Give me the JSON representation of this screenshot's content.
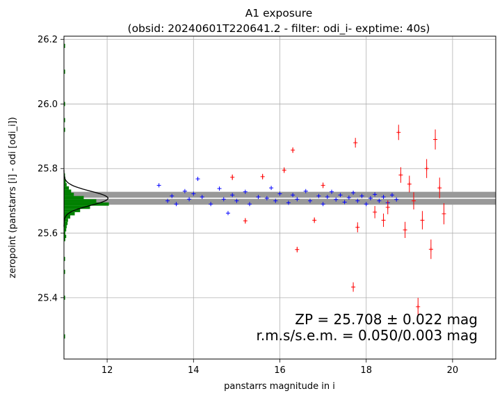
{
  "chart_data": {
    "type": "scatter",
    "title": "A1 exposure",
    "subtitle": "(obsid: 20240601T220641.2 - filter: odi_i- exptime: 40s)",
    "xlabel": "panstarrs magnitude in i",
    "ylabel": "zeropoint (panstarrs [i] - odi [odi_i])",
    "xlim": [
      11.0,
      21.0
    ],
    "ylim": [
      25.21,
      26.21
    ],
    "xticks": [
      12,
      14,
      16,
      18,
      20
    ],
    "yticks": [
      25.4,
      25.6,
      25.8,
      26.0,
      26.2
    ],
    "grid": true,
    "zeropoint": {
      "value": 25.708,
      "band_low": 25.688,
      "band_high": 25.728
    },
    "annotation": {
      "line1": "ZP = 25.708 ± 0.022 mag",
      "line2": "r.m.s/s.e.m. = 0.050/0.003 mag"
    },
    "colors": {
      "used": "#0000ff",
      "rejected": "#ff0000",
      "histogram": "#008000",
      "band": "#999999",
      "zp_line": "#ffffff",
      "fit": "#000000"
    },
    "histogram": {
      "bin_width": 0.01,
      "bins": [
        {
          "y": 25.58,
          "count": 0.03
        },
        {
          "y": 25.59,
          "count": 0.05
        },
        {
          "y": 25.6,
          "count": 0.03
        },
        {
          "y": 25.61,
          "count": 0.05
        },
        {
          "y": 25.62,
          "count": 0.06
        },
        {
          "y": 25.63,
          "count": 0.08
        },
        {
          "y": 25.64,
          "count": 0.09
        },
        {
          "y": 25.65,
          "count": 0.14
        },
        {
          "y": 25.66,
          "count": 0.24
        },
        {
          "y": 25.67,
          "count": 0.36
        },
        {
          "y": 25.68,
          "count": 0.58
        },
        {
          "y": 25.69,
          "count": 1.0
        },
        {
          "y": 25.7,
          "count": 0.72
        },
        {
          "y": 25.71,
          "count": 0.44
        },
        {
          "y": 25.72,
          "count": 0.22
        },
        {
          "y": 25.73,
          "count": 0.16
        },
        {
          "y": 25.74,
          "count": 0.11
        },
        {
          "y": 25.75,
          "count": 0.06
        },
        {
          "y": 25.76,
          "count": 0.04
        },
        {
          "y": 25.77,
          "count": 0.03
        },
        {
          "y": 25.78,
          "count": 0.02
        }
      ]
    },
    "fit_curve": {
      "mu": 25.708,
      "sigma": 0.022,
      "peak": 0.98
    },
    "series": [
      {
        "name": "",
        "style": "used",
        "points": [
          [
            13.2,
            25.748
          ],
          [
            13.4,
            25.7
          ],
          [
            13.5,
            25.715
          ],
          [
            13.6,
            25.69
          ],
          [
            13.8,
            25.73
          ],
          [
            13.9,
            25.705
          ],
          [
            14.0,
            25.722
          ],
          [
            14.1,
            25.768
          ],
          [
            14.2,
            25.712
          ],
          [
            14.4,
            25.69
          ],
          [
            14.6,
            25.738
          ],
          [
            14.7,
            25.705
          ],
          [
            14.8,
            25.662
          ],
          [
            14.9,
            25.718
          ],
          [
            15.0,
            25.7
          ],
          [
            15.2,
            25.728
          ],
          [
            15.3,
            25.69
          ],
          [
            15.5,
            25.712
          ],
          [
            15.7,
            25.708
          ],
          [
            15.8,
            25.74
          ],
          [
            15.9,
            25.7
          ],
          [
            16.0,
            25.722
          ],
          [
            16.2,
            25.694
          ],
          [
            16.3,
            25.718
          ],
          [
            16.4,
            25.705
          ],
          [
            16.6,
            25.73
          ],
          [
            16.7,
            25.7
          ],
          [
            16.9,
            25.715
          ],
          [
            17.0,
            25.69
          ],
          [
            17.1,
            25.712
          ],
          [
            17.2,
            25.728
          ],
          [
            17.3,
            25.704
          ],
          [
            17.4,
            25.718
          ],
          [
            17.5,
            25.696
          ],
          [
            17.6,
            25.71
          ],
          [
            17.7,
            25.725
          ],
          [
            17.8,
            25.7
          ],
          [
            17.9,
            25.715
          ],
          [
            18.0,
            25.69
          ],
          [
            18.1,
            25.708
          ],
          [
            18.2,
            25.72
          ],
          [
            18.3,
            25.7
          ],
          [
            18.4,
            25.712
          ],
          [
            18.5,
            25.694
          ],
          [
            18.6,
            25.718
          ],
          [
            18.7,
            25.704
          ]
        ]
      },
      {
        "name": "",
        "style": "rejected",
        "points": [
          [
            14.9,
            25.773
          ],
          [
            15.2,
            25.638
          ],
          [
            15.6,
            25.775
          ],
          [
            16.1,
            25.795
          ],
          [
            16.3,
            25.857
          ],
          [
            16.4,
            25.549
          ],
          [
            16.8,
            25.64
          ],
          [
            17.0,
            25.748
          ],
          [
            17.7,
            25.433
          ],
          [
            17.75,
            25.88
          ],
          [
            17.8,
            25.618
          ],
          [
            18.2,
            25.665
          ],
          [
            18.4,
            25.64
          ],
          [
            18.5,
            25.68
          ],
          [
            18.75,
            25.912
          ],
          [
            18.8,
            25.78
          ],
          [
            18.9,
            25.61
          ],
          [
            19.0,
            25.752
          ],
          [
            19.1,
            25.7
          ],
          [
            19.2,
            25.372
          ],
          [
            19.3,
            25.64
          ],
          [
            19.4,
            25.8
          ],
          [
            19.5,
            25.55
          ],
          [
            19.6,
            25.89
          ],
          [
            19.7,
            25.74
          ],
          [
            19.8,
            25.66
          ]
        ]
      }
    ]
  }
}
